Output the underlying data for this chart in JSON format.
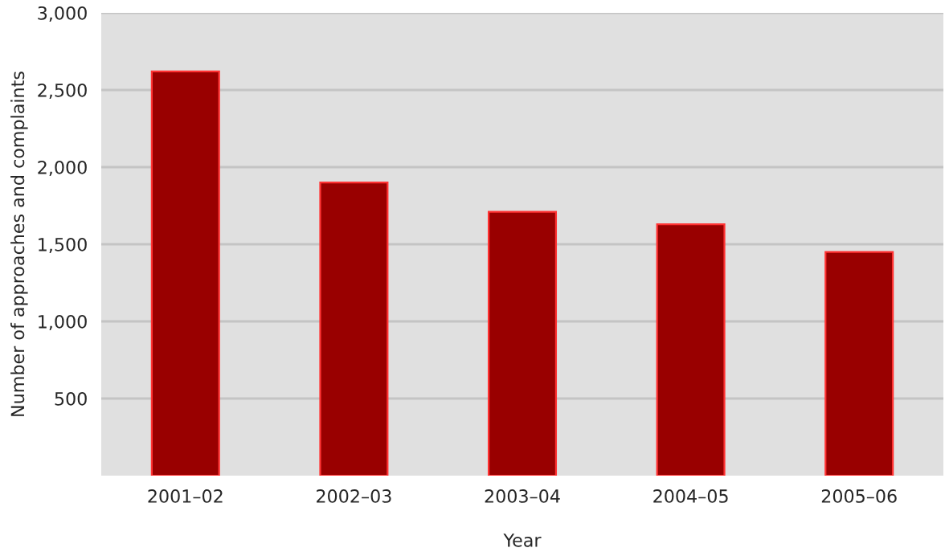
{
  "chart_data": {
    "type": "bar",
    "xlabel": "Year",
    "ylabel": "Number of approaches and complaints",
    "categories": [
      "2001–02",
      "2002–03",
      "2003–04",
      "2004–05",
      "2005–06"
    ],
    "values": [
      2620,
      1900,
      1710,
      1630,
      1450
    ],
    "color": "#990000",
    "ylim": [
      0,
      3000
    ],
    "yticks": [
      {
        "value": 500,
        "label": "500"
      },
      {
        "value": 1000,
        "label": "1,000"
      },
      {
        "value": 1500,
        "label": "1,500"
      },
      {
        "value": 2000,
        "label": "2,000"
      },
      {
        "value": 2500,
        "label": "2,500"
      },
      {
        "value": 3000,
        "label": "3,000"
      }
    ],
    "grid": "y"
  }
}
